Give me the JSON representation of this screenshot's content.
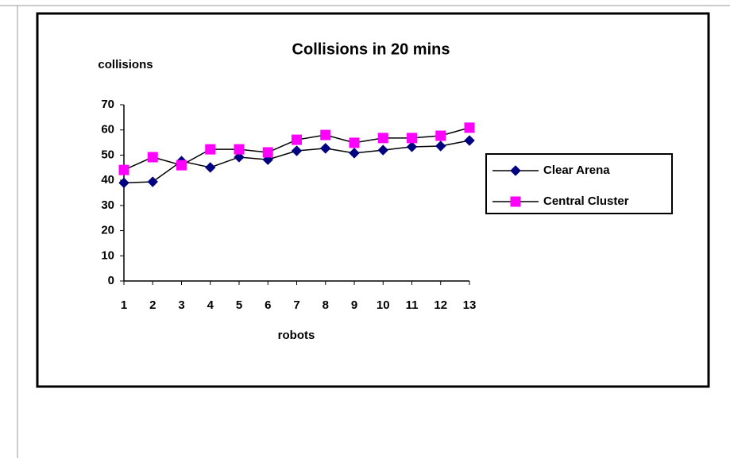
{
  "chart_data": {
    "type": "line",
    "title": "Collisions in 20 mins",
    "y_label": "collisions",
    "x_label": "robots",
    "categories": [
      1,
      2,
      3,
      4,
      5,
      6,
      7,
      8,
      9,
      10,
      11,
      12,
      13
    ],
    "series": [
      {
        "name": "Clear Arena",
        "color": "#000080",
        "marker": "diamond",
        "values": [
          39,
          39.4,
          47.6,
          45.1,
          49.2,
          48.2,
          51.7,
          52.7,
          50.8,
          52,
          53.3,
          53.6,
          55.8
        ]
      },
      {
        "name": "Central Cluster",
        "color": "#ff00ff",
        "marker": "square",
        "values": [
          44.1,
          49.2,
          46,
          52.3,
          52.3,
          51.1,
          56.1,
          58,
          54.9,
          56.8,
          56.8,
          57.7,
          60.9
        ]
      }
    ],
    "ylim": [
      0,
      70
    ],
    "yticks": [
      0,
      10,
      20,
      30,
      40,
      50,
      60,
      70
    ],
    "grid": false,
    "legend": "right"
  }
}
